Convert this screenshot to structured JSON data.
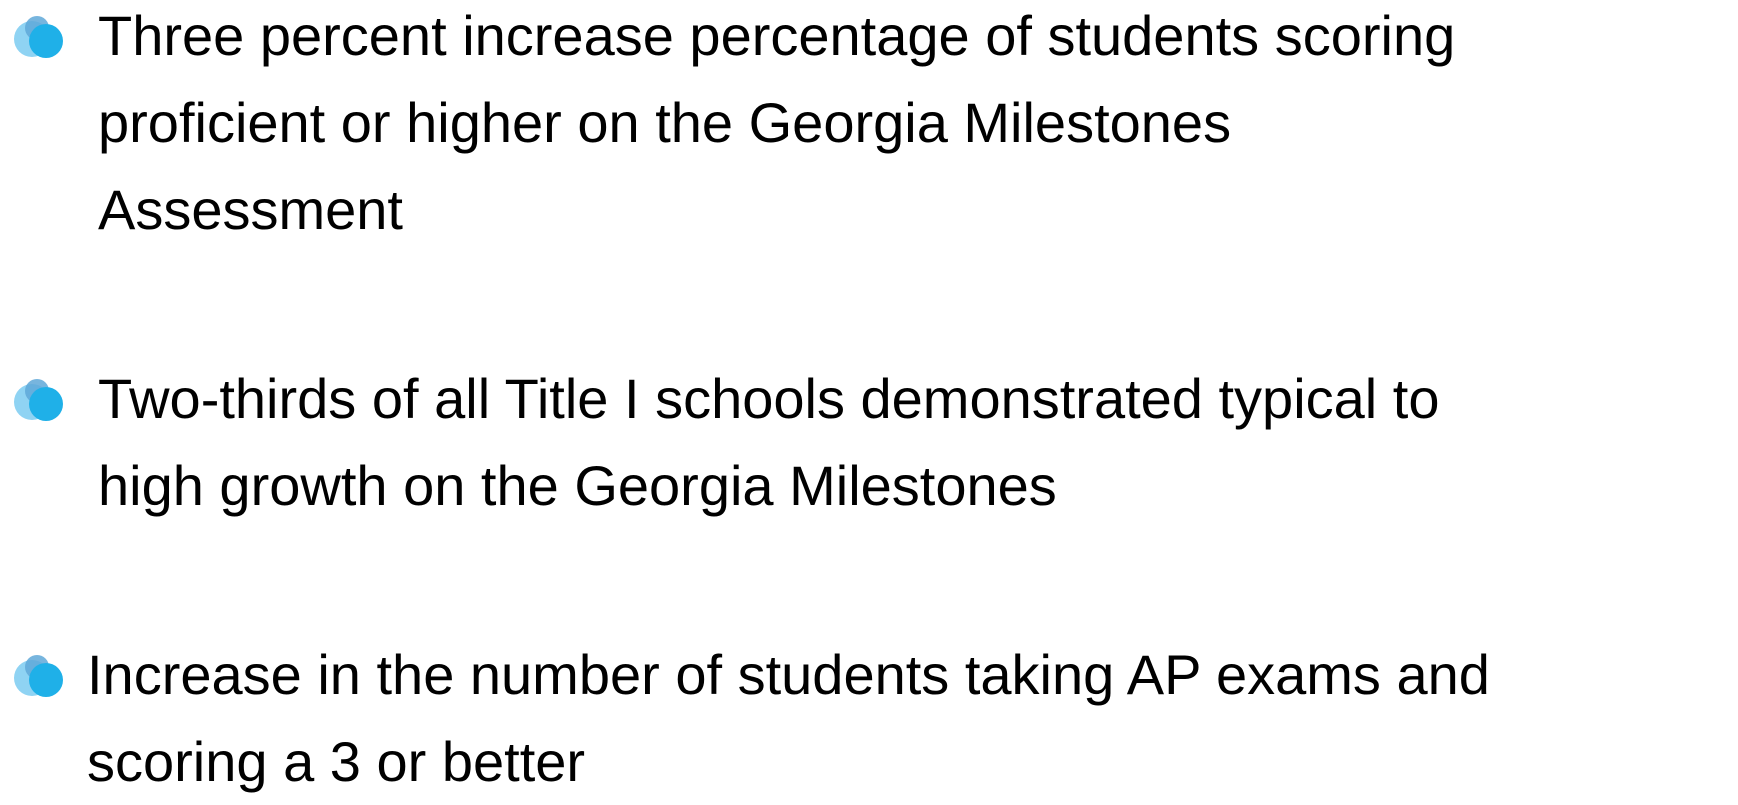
{
  "bullets": [
    {
      "lines": [
        "Three percent increase percentage of students scoring",
        "proficient or higher on the Georgia Milestones",
        "Assessment"
      ]
    },
    {
      "lines": [
        "Two-thirds of all Title I schools demonstrated typical to",
        "high growth on the Georgia Milestones"
      ]
    },
    {
      "lines": [
        "Increase in the number of students taking AP exams and",
        "scoring a 3 or better"
      ]
    }
  ]
}
